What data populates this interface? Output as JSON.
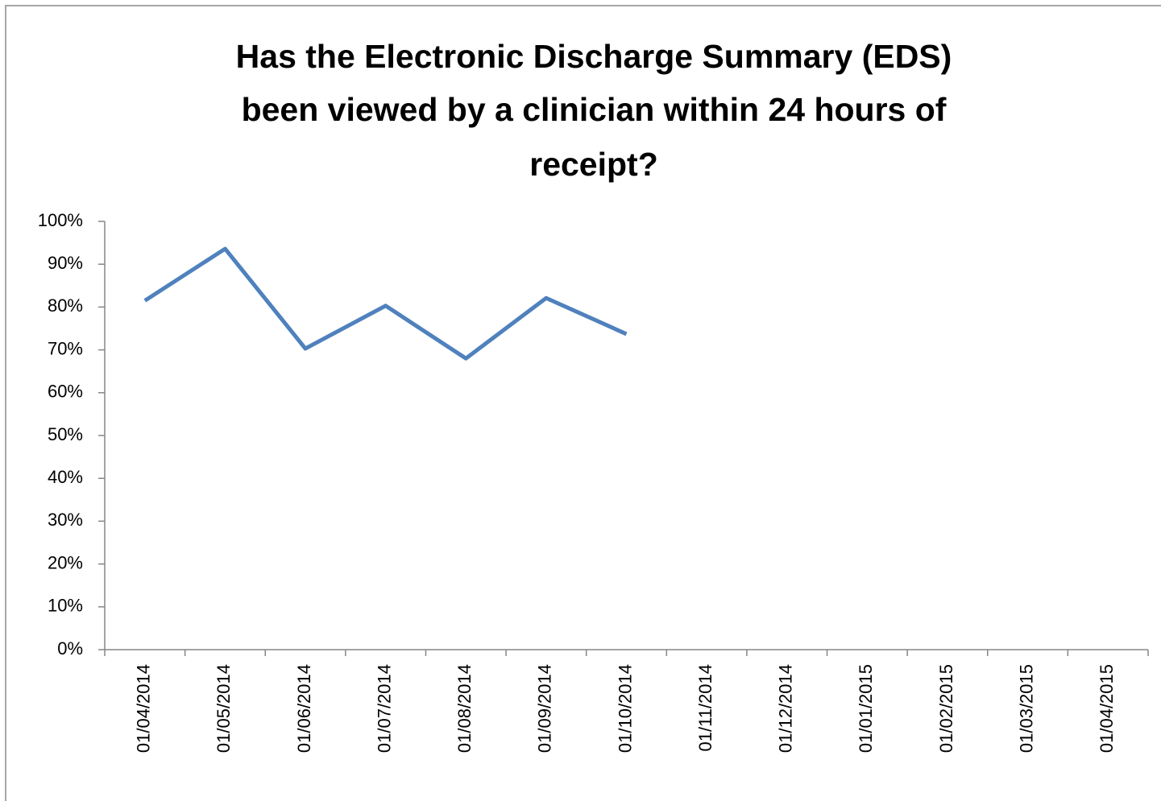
{
  "chart_data": {
    "type": "line",
    "title": [
      "Has the Electronic Discharge Summary (EDS)",
      "been viewed by a clinician within 24 hours of",
      "receipt?"
    ],
    "categories": [
      "01/04/2014",
      "01/05/2014",
      "01/06/2014",
      "01/07/2014",
      "01/08/2014",
      "01/09/2014",
      "01/10/2014",
      "01/11/2014",
      "01/12/2014",
      "01/01/2015",
      "01/02/2015",
      "01/03/2015",
      "01/04/2015"
    ],
    "series": [
      {
        "color": "#4f81bd",
        "values": [
          81.5,
          93.6,
          70.3,
          80.3,
          68.0,
          82.1,
          73.7,
          null,
          null,
          null,
          null,
          null,
          null
        ]
      }
    ],
    "ylim": [
      0,
      100
    ],
    "yticks": [
      {
        "value": 0,
        "label": "0%"
      },
      {
        "value": 10,
        "label": "10%"
      },
      {
        "value": 20,
        "label": "20%"
      },
      {
        "value": 30,
        "label": "30%"
      },
      {
        "value": 40,
        "label": "40%"
      },
      {
        "value": 50,
        "label": "50%"
      },
      {
        "value": 60,
        "label": "60%"
      },
      {
        "value": 70,
        "label": "70%"
      },
      {
        "value": 80,
        "label": "80%"
      },
      {
        "value": 90,
        "label": "90%"
      },
      {
        "value": 100,
        "label": "100%"
      }
    ],
    "grid": false
  }
}
